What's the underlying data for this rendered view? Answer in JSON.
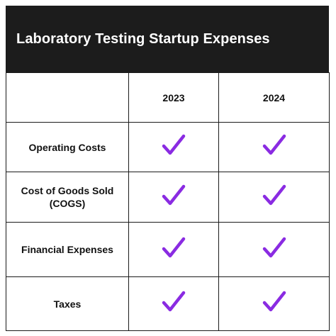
{
  "header": {
    "title": "Laboratory Testing Startup Expenses"
  },
  "columns": [
    "",
    "2023",
    "2024"
  ],
  "rows": [
    {
      "label": "Operating Costs",
      "cells": [
        "check-icon",
        "check-icon"
      ]
    },
    {
      "label": "Cost of Goods Sold (COGS)",
      "cells": [
        "check-icon",
        "check-icon"
      ]
    },
    {
      "label": "Financial Expenses",
      "cells": [
        "check-icon",
        "check-icon"
      ]
    },
    {
      "label": "Taxes",
      "cells": [
        "check-icon",
        "check-icon"
      ]
    }
  ],
  "colors": {
    "header_bg": "#1c1c1c",
    "header_text": "#ffffff",
    "check": "#8a2be2",
    "border": "#1a1a1a"
  }
}
